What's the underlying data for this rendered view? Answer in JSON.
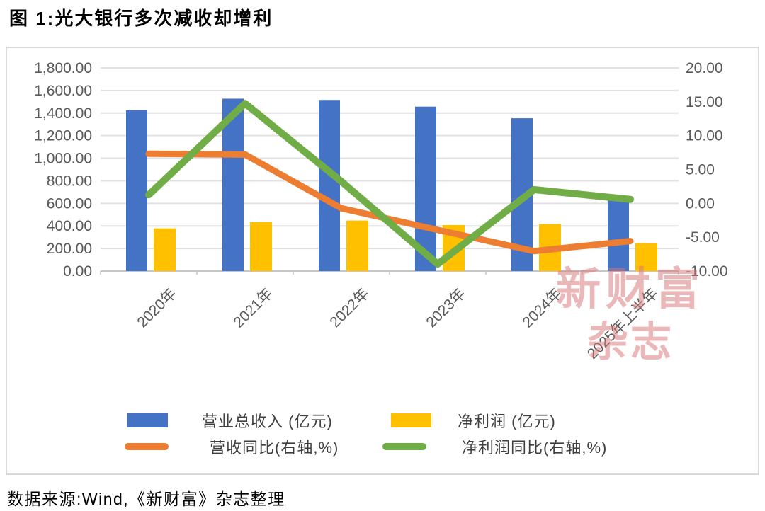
{
  "page": {
    "title": "图 1:光大银行多次减收却增利",
    "source": "数据来源:Wind,《新财富》杂志整理"
  },
  "watermark": {
    "line1": "新财富",
    "line2": "杂志"
  },
  "legend": {
    "position": "bottom",
    "items": [
      {
        "label": "营业总收入 (亿元)",
        "type": "bar",
        "color": "#4472C4"
      },
      {
        "label": "净利润 (亿元)",
        "type": "bar",
        "color": "#FFC000"
      },
      {
        "label": "营收同比(右轴,%)",
        "type": "line",
        "color": "#ED7D31"
      },
      {
        "label": "净利润同比(右轴,%)",
        "type": "line",
        "color": "#70AD47"
      }
    ]
  },
  "chart_data": {
    "type": "combo (bar + line)",
    "title": "图 1:光大银行多次减收却增利",
    "categories": [
      "2020年",
      "2021年",
      "2022年",
      "2023年",
      "2024年",
      "2025年上半年"
    ],
    "series": [
      {
        "name": "营业总收入 (亿元)",
        "chart": "bar",
        "axis": "left",
        "color": "#4472C4",
        "values": [
          1424.79,
          1527.51,
          1516.32,
          1456.85,
          1354.15,
          659.18
        ]
      },
      {
        "name": "净利润 (亿元)",
        "chart": "bar",
        "axis": "left",
        "color": "#FFC000",
        "values": [
          378.24,
          434.07,
          448.07,
          407.92,
          416.96,
          246.41
        ]
      },
      {
        "name": "营收同比(右轴,%)",
        "chart": "line",
        "axis": "right",
        "color": "#ED7D31",
        "values": [
          7.32,
          7.21,
          -0.73,
          -3.92,
          -7.05,
          -5.57
        ]
      },
      {
        "name": "净利润同比(右轴,%)",
        "chart": "line",
        "axis": "right",
        "color": "#70AD47",
        "values": [
          1.26,
          14.76,
          3.23,
          -8.96,
          2.03,
          0.58
        ]
      }
    ],
    "left_axis": {
      "min": 0,
      "max": 1800,
      "step": 200,
      "tick_labels": [
        "1,800.00",
        "1,600.00",
        "1,400.00",
        "1,200.00",
        "1,000.00",
        "800.00",
        "600.00",
        "400.00",
        "200.00",
        "0.00"
      ]
    },
    "right_axis": {
      "min": -10,
      "max": 20,
      "step": 5,
      "tick_labels": [
        "20.00",
        "15.00",
        "10.00",
        "5.00",
        "0.00",
        "-5.00",
        "-10.00"
      ]
    },
    "grid": true,
    "legend_position": "bottom",
    "colors": {
      "grid": "#e2e2e2",
      "axis_text": "#595959",
      "watermark_pink": "#ecbcbc"
    }
  }
}
